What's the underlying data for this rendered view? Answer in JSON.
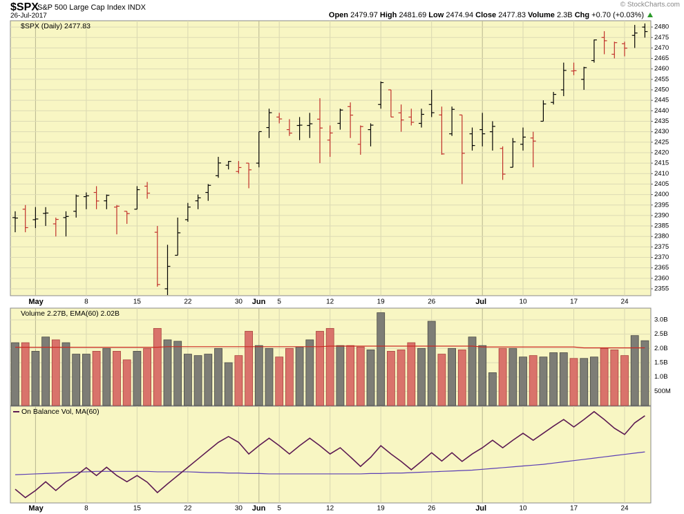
{
  "header": {
    "symbol": "$SPX",
    "name": "S&P 500 Large Cap Index",
    "exchange": "INDX",
    "date": "26-Jul-2017",
    "open_label": "Open",
    "high_label": "High",
    "low_label": "Low",
    "close_label": "Close",
    "volume_label": "Volume",
    "volume_value": "2.3B",
    "chg_label": "Chg",
    "chg_value": "+0.70 (+0.03%)",
    "credit": "© StockCharts.com"
  },
  "chart_data": [
    {
      "type": "ohlc",
      "legend": "$SPX (Daily) 2477.83",
      "up_color": "#000000",
      "down_color": "#c0302a",
      "grid": true,
      "categories": [
        null,
        null,
        "May",
        null,
        null,
        null,
        null,
        "8",
        null,
        null,
        null,
        null,
        "15",
        null,
        null,
        null,
        null,
        "22",
        null,
        null,
        null,
        null,
        "30",
        null,
        "Jun",
        null,
        "5",
        null,
        null,
        null,
        null,
        "12",
        null,
        null,
        null,
        null,
        "19",
        null,
        null,
        null,
        null,
        "26",
        null,
        null,
        null,
        null,
        "Jul",
        null,
        null,
        null,
        "10",
        null,
        null,
        null,
        null,
        "17",
        null,
        null,
        null,
        null,
        "24",
        null,
        null
      ],
      "open": [
        2389,
        2393,
        2388,
        2391,
        2386,
        2389,
        2392,
        2399,
        2401,
        2397,
        2394,
        2392,
        2393,
        2404,
        2382,
        2355,
        2371,
        2388,
        2397,
        2401,
        2409,
        2414,
        2411,
        2415,
        2415,
        2432,
        2437,
        2431,
        2433,
        2433,
        2436,
        2426,
        2434,
        2442,
        2424,
        2431,
        2443,
        2450,
        2439,
        2437,
        2434,
        2443,
        2438,
        2429,
        2438,
        2429,
        2431,
        2430,
        2422,
        2413,
        2424,
        2427,
        2435,
        2444,
        2450,
        2459,
        2455,
        2464,
        2475,
        2467,
        2472,
        2476,
        2479.97
      ],
      "high": [
        2392,
        2395,
        2394,
        2394,
        2389,
        2392,
        2400,
        2401,
        2404,
        2400,
        2395,
        2392,
        2404,
        2406,
        2385,
        2376,
        2389,
        2396,
        2400,
        2405,
        2418,
        2416,
        2416,
        2415,
        2430,
        2441,
        2439,
        2436,
        2437,
        2439,
        2446,
        2433,
        2441,
        2444,
        2433,
        2434,
        2454,
        2450,
        2443,
        2441,
        2441,
        2450,
        2442,
        2442,
        2438,
        2432,
        2439,
        2435,
        2423,
        2427,
        2432,
        2430,
        2445,
        2449,
        2463,
        2463,
        2461,
        2474,
        2478,
        2473,
        2473,
        2481,
        2481.69
      ],
      "low": [
        2382,
        2382,
        2384,
        2385,
        2380,
        2380,
        2389,
        2393,
        2393,
        2393,
        2381,
        2386,
        2393,
        2398,
        2356,
        2352,
        2371,
        2387,
        2393,
        2397,
        2408,
        2412,
        2410,
        2403,
        2413,
        2427,
        2434,
        2428,
        2426,
        2427,
        2415,
        2418,
        2431,
        2427,
        2419,
        2423,
        2441,
        2437,
        2430,
        2433,
        2432,
        2437,
        2419,
        2428,
        2405,
        2421,
        2423,
        2421,
        2407,
        2413,
        2421,
        2413,
        2435,
        2443,
        2447,
        2457,
        2450,
        2463,
        2467,
        2465,
        2466,
        2470,
        2474.94
      ],
      "close": [
        2388.77,
        2384.2,
        2388.33,
        2391.17,
        2388.13,
        2389.52,
        2399.29,
        2399.38,
        2396.92,
        2399.63,
        2394.44,
        2390.9,
        2402.32,
        2400.67,
        2357.03,
        2365.72,
        2381.73,
        2394.02,
        2398.42,
        2404.39,
        2415.07,
        2415.82,
        2412.91,
        2411.8,
        2430.06,
        2439.07,
        2436.1,
        2429.33,
        2433.14,
        2433.79,
        2431.77,
        2429.39,
        2440.35,
        2437.92,
        2432.46,
        2433.15,
        2453.46,
        2437.03,
        2435.61,
        2434.5,
        2438.3,
        2439.07,
        2419.38,
        2440.69,
        2419.7,
        2423.41,
        2429.01,
        2432.54,
        2409.75,
        2425.18,
        2427.43,
        2425.53,
        2443.25,
        2447.83,
        2459.27,
        2459.14,
        2460.61,
        2473.83,
        2473.45,
        2472.54,
        2469.91,
        2477.13,
        2477.83
      ],
      "ylim": [
        2351.7,
        2483
      ],
      "yticks": [
        2355,
        2360,
        2365,
        2370,
        2375,
        2380,
        2385,
        2390,
        2395,
        2400,
        2405,
        2410,
        2415,
        2420,
        2425,
        2430,
        2435,
        2440,
        2445,
        2450,
        2455,
        2460,
        2465,
        2470,
        2475,
        2480
      ]
    },
    {
      "type": "volume",
      "legend": "Volume 2.27B, EMA(60) 2.02B",
      "up_color": "#7d7d76",
      "down_color": "#d9736b",
      "ema_color": "#cc2a22",
      "grid": true,
      "values": [
        2.2,
        2.2,
        1.9,
        2.4,
        2.3,
        2.2,
        1.8,
        1.8,
        1.9,
        2.0,
        1.9,
        1.6,
        1.9,
        2.0,
        2.7,
        2.3,
        2.25,
        1.8,
        1.75,
        1.8,
        2.0,
        1.5,
        1.75,
        2.6,
        2.1,
        2.0,
        1.7,
        2.0,
        2.05,
        2.3,
        2.6,
        2.7,
        2.1,
        2.1,
        2.05,
        1.95,
        3.25,
        1.9,
        1.95,
        2.2,
        2.0,
        2.95,
        1.8,
        2.0,
        1.95,
        2.4,
        2.1,
        1.15,
        2.0,
        2.0,
        1.7,
        1.75,
        1.7,
        1.85,
        1.85,
        1.65,
        1.65,
        1.7,
        2.0,
        1.95,
        1.75,
        2.45,
        2.27
      ],
      "ema": [
        2.04,
        2.04,
        2.04,
        2.04,
        2.04,
        2.04,
        2.04,
        2.04,
        2.04,
        2.04,
        2.04,
        2.04,
        2.04,
        2.04,
        2.04,
        2.06,
        2.06,
        2.06,
        2.06,
        2.06,
        2.06,
        2.06,
        2.06,
        2.06,
        2.06,
        2.06,
        2.06,
        2.06,
        2.06,
        2.06,
        2.06,
        2.08,
        2.08,
        2.08,
        2.08,
        2.08,
        2.08,
        2.08,
        2.08,
        2.08,
        2.08,
        2.08,
        2.08,
        2.08,
        2.08,
        2.08,
        2.05,
        2.05,
        2.05,
        2.05,
        2.05,
        2.05,
        2.05,
        2.05,
        2.05,
        2.05,
        2.02,
        2.02,
        2.02,
        2.02,
        2.02,
        2.02,
        2.02
      ],
      "ylim": [
        0,
        3.41
      ],
      "yticks": [
        {
          "value": 3.0,
          "label": "3.0B"
        },
        {
          "value": 2.5,
          "label": "2.5B"
        },
        {
          "value": 2.0,
          "label": "2.0B"
        },
        {
          "value": 1.5,
          "label": "1.5B"
        },
        {
          "value": 1.0,
          "label": "1.0B"
        },
        {
          "value": 0.5,
          "label": "500M"
        }
      ]
    },
    {
      "type": "obv",
      "legend": "On Balance Vol, MA(60)",
      "color": "#5c1a52",
      "ma_color": "#5a3db4",
      "values": [
        0,
        -2,
        -0.3,
        1.8,
        -0.3,
        1.8,
        3.3,
        5.2,
        3.3,
        5.3,
        3.3,
        1.8,
        3.3,
        1.7,
        -0.8,
        1.3,
        3.3,
        5.3,
        7.3,
        9.3,
        11.3,
        12.7,
        11.3,
        8.5,
        10.5,
        12.3,
        10.5,
        8.5,
        10.5,
        12.3,
        10.5,
        8.5,
        10,
        7.8,
        5.5,
        7.7,
        10.5,
        8.5,
        6.7,
        4.7,
        6.7,
        8.8,
        6.8,
        8.8,
        6.7,
        8.5,
        10,
        11.8,
        10,
        11.8,
        13.5,
        11.8,
        13.5,
        15.2,
        16.8,
        15,
        16.8,
        18.7,
        16.8,
        14.7,
        13.2,
        16,
        17.7
      ],
      "ma": [
        3.5,
        3.6,
        3.7,
        3.8,
        3.9,
        4.0,
        4.1,
        4.2,
        4.3,
        4.3,
        4.3,
        4.3,
        4.3,
        4.3,
        4.2,
        4.2,
        4.2,
        4.2,
        4.1,
        4.0,
        4.0,
        3.9,
        3.9,
        3.8,
        3.8,
        3.7,
        3.7,
        3.7,
        3.7,
        3.7,
        3.7,
        3.7,
        3.7,
        3.7,
        3.7,
        3.8,
        3.8,
        3.9,
        3.9,
        4.0,
        4.1,
        4.2,
        4.3,
        4.4,
        4.5,
        4.6,
        4.8,
        5.0,
        5.2,
        5.4,
        5.6,
        5.8,
        6.0,
        6.3,
        6.6,
        6.9,
        7.2,
        7.5,
        7.8,
        8.1,
        8.4,
        8.7,
        9.0
      ],
      "ylim": [
        -3.3,
        20
      ]
    }
  ]
}
